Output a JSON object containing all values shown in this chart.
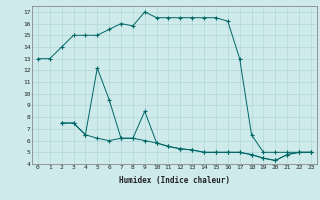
{
  "title": "",
  "xlabel": "Humidex (Indice chaleur)",
  "xlim": [
    -0.5,
    23.5
  ],
  "ylim": [
    4,
    17.5
  ],
  "yticks": [
    4,
    5,
    6,
    7,
    8,
    9,
    10,
    11,
    12,
    13,
    14,
    15,
    16,
    17
  ],
  "xticks": [
    0,
    1,
    2,
    3,
    4,
    5,
    6,
    7,
    8,
    9,
    10,
    11,
    12,
    13,
    14,
    15,
    16,
    17,
    18,
    19,
    20,
    21,
    22,
    23
  ],
  "bg_color": "#ceeaea",
  "line_color": "#006666",
  "grid_color": "#aad4d4",
  "series": [
    {
      "x": [
        0,
        1,
        2,
        3,
        4,
        5,
        6,
        7,
        8,
        9,
        10,
        11,
        12,
        13,
        14,
        15,
        16,
        17,
        18,
        19,
        20,
        21,
        22,
        23
      ],
      "y": [
        13,
        13,
        14,
        15,
        15,
        15,
        15.5,
        16,
        15.8,
        17,
        16.5,
        16.5,
        16.5,
        16.5,
        16.5,
        16.5,
        16.2,
        13.0,
        6.5,
        5.0,
        5.0,
        5.0,
        5.0,
        5.0
      ]
    },
    {
      "x": [
        2,
        3,
        4,
        5,
        6,
        7,
        8,
        9,
        10,
        11,
        12,
        13,
        14,
        15,
        16,
        17,
        18,
        19,
        20,
        21,
        22,
        23
      ],
      "y": [
        7.5,
        7.5,
        6.5,
        12.2,
        9.5,
        6.2,
        6.2,
        8.5,
        5.8,
        5.5,
        5.3,
        5.2,
        5.0,
        5.0,
        5.0,
        5.0,
        4.8,
        4.5,
        4.3,
        4.8,
        5.0,
        5.0
      ]
    },
    {
      "x": [
        2,
        3,
        4,
        5,
        6,
        7,
        8,
        9,
        10,
        11,
        12,
        13,
        14,
        15,
        16,
        17,
        18,
        19,
        20,
        21,
        22,
        23
      ],
      "y": [
        7.5,
        7.5,
        6.5,
        6.2,
        6.0,
        6.2,
        6.2,
        6.0,
        5.8,
        5.5,
        5.3,
        5.2,
        5.0,
        5.0,
        5.0,
        5.0,
        4.8,
        4.5,
        4.3,
        4.8,
        5.0,
        5.0
      ]
    }
  ]
}
